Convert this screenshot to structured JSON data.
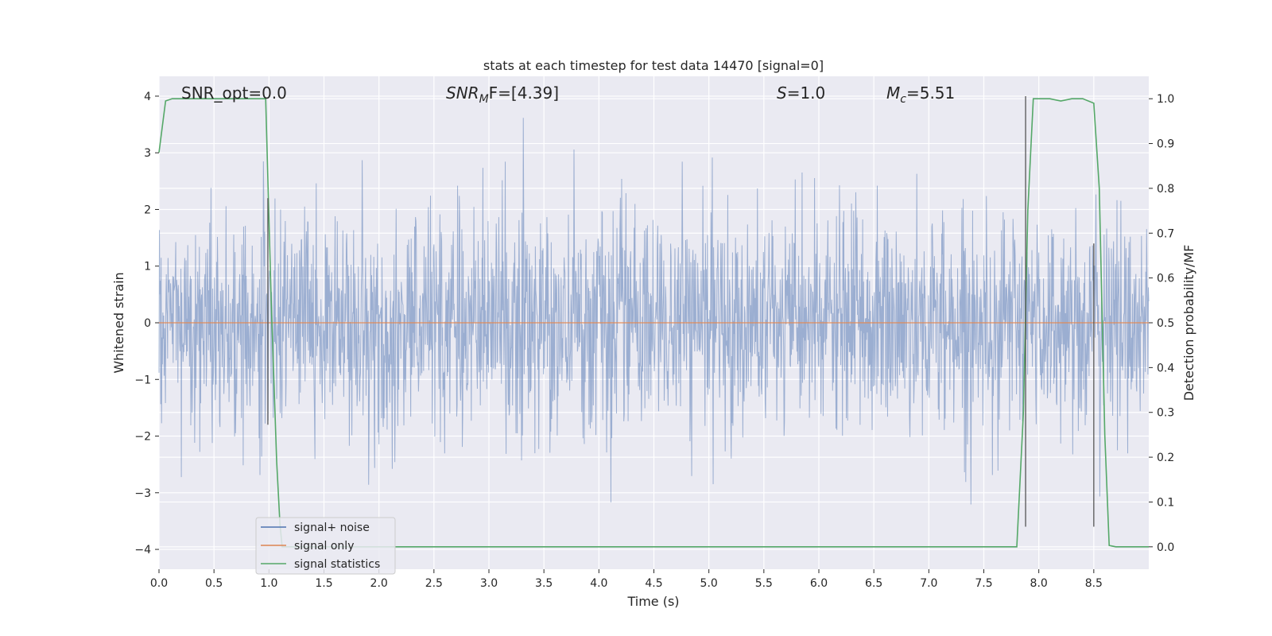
{
  "chart_data": {
    "type": "line",
    "title": "stats at each timestep for test data 14470 [signal=0]",
    "xlabel": "Time (s)",
    "ylabel_left": "Whitened strain",
    "ylabel_right": "Detection probability/MF",
    "xlim": [
      0.0,
      9.0
    ],
    "ylim_left": [
      -4.35,
      4.35
    ],
    "ylim_right": [
      -0.05,
      1.05
    ],
    "x_ticks": [
      "0.0",
      "0.5",
      "1.0",
      "1.5",
      "2.0",
      "2.5",
      "3.0",
      "3.5",
      "4.0",
      "4.5",
      "5.0",
      "5.5",
      "6.0",
      "6.5",
      "7.0",
      "7.5",
      "8.0",
      "8.5"
    ],
    "y_left_ticks": [
      "4",
      "3",
      "2",
      "1",
      "0",
      "−1",
      "−2",
      "−3",
      "−4"
    ],
    "y_right_ticks": [
      "1.0",
      "0.9",
      "0.8",
      "0.7",
      "0.6",
      "0.5",
      "0.4",
      "0.3",
      "0.2",
      "0.1",
      "0.0"
    ],
    "grid": true,
    "legend_position": "lower-left",
    "annotations": [
      {
        "prefix": "SNR_opt=0.0",
        "sub": "",
        "suffix": ""
      },
      {
        "prefix": "SNR",
        "sub": "M",
        "suffix": "F=[4.39]"
      },
      {
        "prefix": "S",
        "sub": "",
        "suffix": "=1.0"
      },
      {
        "prefix": "M",
        "sub": "c",
        "suffix": "=5.51"
      }
    ],
    "series": [
      {
        "name": "signal+ noise",
        "color": "#4c72b0",
        "kind": "noise",
        "noise_sigma": 1.0,
        "sample_rate": 256,
        "peak_high": 4.0,
        "peak_low": -3.6
      },
      {
        "name": "signal only",
        "color": "#dd8452",
        "kind": "line",
        "x": [
          0.0,
          9.0
        ],
        "y": [
          0.0,
          0.0
        ]
      },
      {
        "name": "signal statistics",
        "color": "#55a868",
        "kind": "line",
        "axis": "right",
        "x": [
          0.0,
          0.06,
          0.12,
          0.25,
          0.5,
          0.75,
          0.97,
          1.02,
          1.07,
          1.1,
          1.12,
          1.14,
          1.5,
          2.0,
          3.0,
          4.0,
          5.0,
          6.0,
          7.0,
          7.5,
          7.8,
          7.86,
          7.9,
          7.95,
          8.0,
          8.1,
          8.2,
          8.3,
          8.4,
          8.5,
          8.55,
          8.6,
          8.64,
          8.7,
          8.8,
          9.0
        ],
        "y": [
          0.88,
          0.995,
          1.0,
          1.0,
          1.0,
          1.0,
          1.0,
          0.55,
          0.19,
          0.05,
          0.0,
          0.0,
          0.0,
          0.0,
          0.0,
          0.0,
          0.0,
          0.0,
          0.0,
          0.0,
          0.0,
          0.3,
          0.75,
          1.0,
          1.0,
          1.0,
          0.995,
          1.0,
          1.0,
          0.99,
          0.8,
          0.25,
          0.003,
          0.0,
          0.0,
          0.0
        ]
      }
    ],
    "vlines": [
      {
        "x": 0.99,
        "y0": -1.8,
        "y1": 2.2,
        "color": "#555555"
      },
      {
        "x": 7.88,
        "y0": -3.6,
        "y1": 4.0,
        "color": "#555555"
      },
      {
        "x": 8.5,
        "y0": -3.6,
        "y1": 1.4,
        "color": "#555555"
      }
    ]
  }
}
